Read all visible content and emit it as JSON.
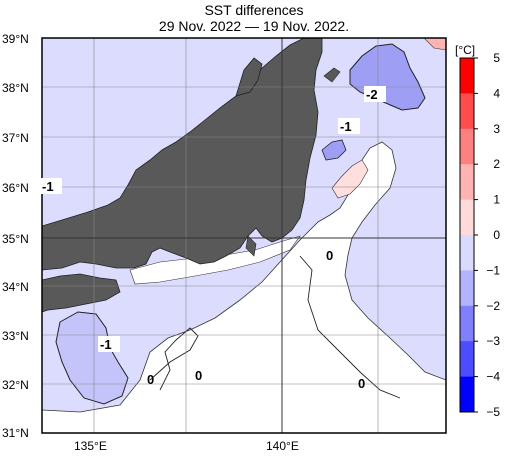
{
  "title": "SST differences",
  "subtitle": "29 Nov. 2022 — 19 Nov. 2022.",
  "lat_labels": [
    "39°N",
    "38°N",
    "37°N",
    "36°N",
    "35°N",
    "34°N",
    "33°N",
    "32°N",
    "31°N"
  ],
  "lon_labels": [
    "135°E",
    "140°E"
  ],
  "contour_labels": [
    "-2",
    "-1",
    "-1",
    "-1",
    "0",
    "0",
    "0",
    "0"
  ],
  "colorbar": {
    "unit": "[°C]",
    "ticks": [
      "5",
      "4",
      "3",
      "2",
      "1",
      "0",
      "−1",
      "−2",
      "−3",
      "−4",
      "−5"
    ],
    "colors": [
      "#ff0000",
      "#ff4d4d",
      "#ff8080",
      "#ffb3b3",
      "#ffdada",
      "#ffffff",
      "#dadaff",
      "#b3b3ff",
      "#8080ff",
      "#4d4dff",
      "#0000ff"
    ]
  },
  "colors": {
    "land": "#595959",
    "sea_minus1": "#dcdcff",
    "sea_zero": "#ffffff",
    "sea_minus2": "#9e9ef5",
    "sea_plus1": "#ffdede"
  }
}
